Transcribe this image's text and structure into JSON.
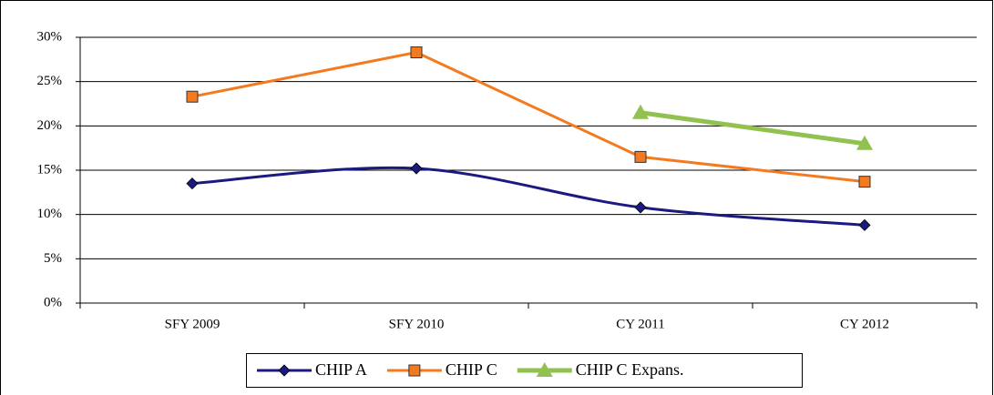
{
  "chart_data": {
    "type": "line",
    "categories": [
      "SFY 2009",
      "SFY 2010",
      "CY 2011",
      "CY 2012"
    ],
    "series": [
      {
        "name": "CHIP A",
        "color": "#1a1a80",
        "marker": "diamond",
        "smooth": true,
        "values": [
          13.5,
          15.2,
          10.8,
          8.8
        ]
      },
      {
        "name": "CHIP C",
        "color": "#f47a20",
        "marker": "square",
        "smooth": false,
        "values": [
          23.3,
          28.3,
          16.5,
          13.7
        ]
      },
      {
        "name": "CHIP C Expans.",
        "color": "#92c150",
        "marker": "triangle",
        "smooth": false,
        "values": [
          null,
          null,
          21.5,
          18.0
        ]
      }
    ],
    "ylim": [
      0,
      30
    ],
    "yticks": [
      {
        "value": 0,
        "label": "0%"
      },
      {
        "value": 5,
        "label": "5%"
      },
      {
        "value": 10,
        "label": "10%"
      },
      {
        "value": 15,
        "label": "15%"
      },
      {
        "value": 20,
        "label": "20%"
      },
      {
        "value": 25,
        "label": "25%"
      },
      {
        "value": 30,
        "label": "30%"
      }
    ],
    "grid": true,
    "legend": "bottom"
  }
}
